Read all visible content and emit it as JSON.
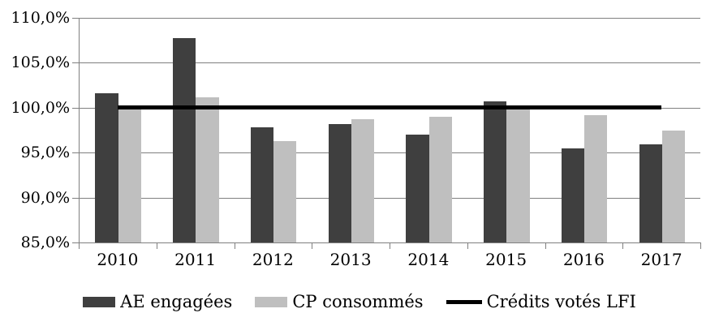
{
  "chart_data": {
    "type": "bar",
    "title": "",
    "categories": [
      "2010",
      "2011",
      "2012",
      "2013",
      "2014",
      "2015",
      "2016",
      "2017"
    ],
    "series": [
      {
        "name": "AE engagées",
        "color": "#3f3f3f",
        "values": [
          101.6,
          107.7,
          97.8,
          98.2,
          97.0,
          100.7,
          95.5,
          95.9
        ]
      },
      {
        "name": "CP consommés",
        "color": "#bfbfbf",
        "values": [
          100.1,
          101.2,
          96.3,
          98.7,
          99.0,
          100.0,
          99.2,
          97.5
        ]
      }
    ],
    "reference_line": {
      "name": "Crédits votés LFI",
      "value": 100.0,
      "color": "#000000"
    },
    "y_axis": {
      "min": 85,
      "max": 110,
      "tick_step": 5,
      "ticks": [
        110,
        105,
        100,
        95,
        90,
        85
      ],
      "tick_labels": [
        "110,0%",
        "105,0%",
        "100,0%",
        "95,0%",
        "90,0%",
        "85,0%"
      ]
    },
    "x_axis": {
      "label": ""
    },
    "grid": true,
    "legend_position": "bottom",
    "colors": {
      "grid": "#808080",
      "axis": "#808080",
      "text": "#000000",
      "background": "#ffffff"
    }
  }
}
